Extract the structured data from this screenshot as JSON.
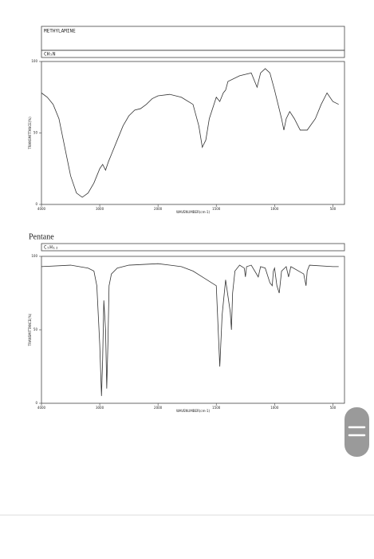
{
  "chart_data": [
    {
      "type": "line",
      "title": "METHYLAMINE",
      "subtitle": "CH₅N",
      "xlabel": "WAVENUMBER(cm-1)",
      "ylabel": "TRANSMITTANCE(%)",
      "xlim": [
        4000,
        400
      ],
      "ylim": [
        0,
        100
      ],
      "xticks": [
        4000,
        3000,
        2000,
        1500,
        1000,
        500
      ],
      "yticks": [
        0,
        50,
        100
      ],
      "color": "#333333",
      "x": [
        4000,
        3900,
        3800,
        3700,
        3600,
        3500,
        3400,
        3300,
        3200,
        3100,
        3000,
        2950,
        2900,
        2850,
        2800,
        2700,
        2600,
        2500,
        2400,
        2300,
        2200,
        2100,
        2000,
        1900,
        1800,
        1700,
        1650,
        1620,
        1590,
        1560,
        1500,
        1470,
        1440,
        1420,
        1400,
        1300,
        1200,
        1150,
        1120,
        1080,
        1040,
        1000,
        970,
        940,
        920,
        900,
        870,
        830,
        780,
        720,
        650,
        600,
        550,
        500,
        450
      ],
      "values": [
        78,
        75,
        70,
        60,
        40,
        20,
        8,
        5,
        8,
        15,
        25,
        28,
        24,
        30,
        35,
        45,
        55,
        62,
        66,
        67,
        70,
        74,
        76,
        77,
        75,
        70,
        55,
        40,
        45,
        60,
        75,
        72,
        78,
        80,
        86,
        90,
        92,
        82,
        92,
        95,
        92,
        80,
        70,
        60,
        52,
        60,
        65,
        60,
        52,
        52,
        60,
        70,
        78,
        72,
        70
      ]
    },
    {
      "type": "line",
      "title": "Pentane",
      "subtitle": "C₅H₁₂",
      "xlabel": "WAVENUMBER(cm-1)",
      "ylabel": "TRANSMITTANCE(%)",
      "xlim": [
        4000,
        400
      ],
      "ylim": [
        0,
        100
      ],
      "xticks": [
        4000,
        3000,
        2000,
        1500,
        1000,
        500
      ],
      "yticks": [
        0,
        50,
        100
      ],
      "color": "#333333",
      "x": [
        4000,
        3500,
        3200,
        3100,
        3050,
        3000,
        2970,
        2950,
        2930,
        2900,
        2880,
        2860,
        2840,
        2800,
        2700,
        2500,
        2000,
        1900,
        1800,
        1700,
        1500,
        1470,
        1450,
        1420,
        1380,
        1370,
        1360,
        1340,
        1300,
        1260,
        1250,
        1240,
        1200,
        1140,
        1120,
        1080,
        1040,
        1020,
        1010,
        1000,
        980,
        960,
        940,
        900,
        880,
        860,
        750,
        730,
        720,
        700,
        500,
        450
      ],
      "values": [
        93,
        94,
        92,
        90,
        80,
        40,
        5,
        30,
        70,
        50,
        10,
        40,
        80,
        88,
        92,
        94,
        95,
        94,
        93,
        90,
        80,
        25,
        60,
        84,
        62,
        50,
        75,
        90,
        94,
        92,
        86,
        93,
        94,
        86,
        93,
        92,
        82,
        80,
        90,
        92,
        80,
        75,
        90,
        93,
        86,
        93,
        88,
        80,
        90,
        94,
        93,
        93
      ]
    }
  ]
}
